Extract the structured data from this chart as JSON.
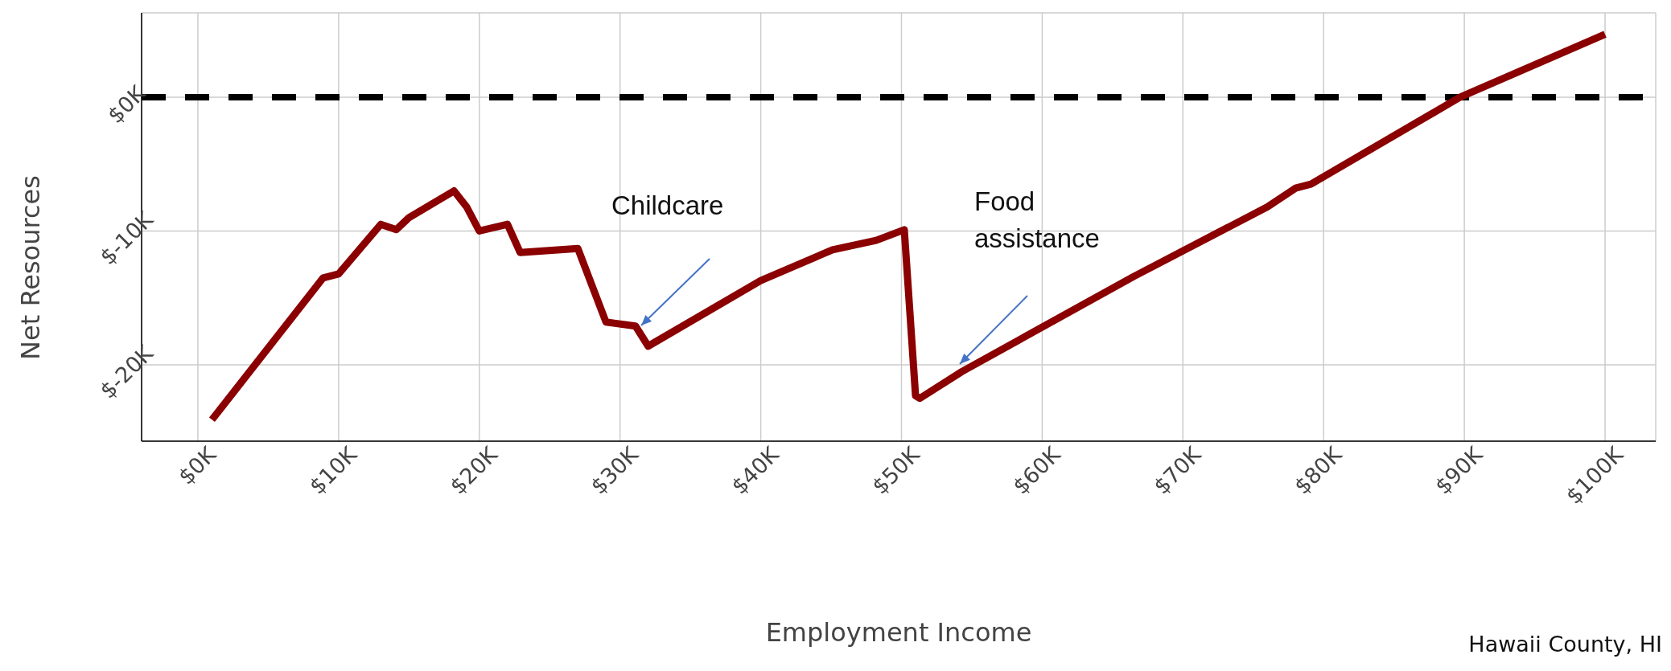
{
  "chart_data": {
    "type": "line",
    "xlabel": "Employment Income",
    "ylabel": "Net Resources",
    "annotations": [
      "Childcare",
      "Food assistance",
      "Hawaii County, HI"
    ],
    "series": [
      {
        "color": "#8b0000",
        "x": [
          1,
          8.9,
          10,
          13,
          14.1,
          15,
          18.2,
          19.1,
          20,
          22,
          22.9,
          27,
          29,
          31.1,
          32,
          40,
          45.1,
          48.2,
          50.2,
          51,
          51.3,
          54.3,
          66.5,
          76,
          78,
          79.1,
          89.7,
          100
        ],
        "values": [
          -24.1,
          -13.5,
          -13.2,
          -9.5,
          -9.9,
          -9,
          -7,
          -8.2,
          -10,
          -9.5,
          -11.6,
          -11.3,
          -16.8,
          -17.1,
          -18.6,
          -13.7,
          -11.4,
          -10.7,
          -9.9,
          -22.3,
          -22.5,
          -20.5,
          -13.4,
          -8.2,
          -6.8,
          -6.5,
          0,
          4.7
        ]
      }
    ],
    "xlim": [
      -4,
      103.6
    ],
    "ylim": [
      -25.7,
      6.3
    ],
    "xticks": [
      {
        "value": 0,
        "label": "$0K"
      },
      {
        "value": 10,
        "label": "$10K"
      },
      {
        "value": 20,
        "label": "$20K"
      },
      {
        "value": 30,
        "label": "$30K"
      },
      {
        "value": 40,
        "label": "$40K"
      },
      {
        "value": 50,
        "label": "$50K"
      },
      {
        "value": 60,
        "label": "$60K"
      },
      {
        "value": 70,
        "label": "$70K"
      },
      {
        "value": 80,
        "label": "$80K"
      },
      {
        "value": 90,
        "label": "$90K"
      },
      {
        "value": 100,
        "label": "$100K"
      }
    ],
    "yticks": [
      {
        "value": -20,
        "label": "$-20K"
      },
      {
        "value": -10,
        "label": "$-10K"
      },
      {
        "value": 0,
        "label": "$0K"
      }
    ],
    "ref_lines": [
      {
        "axis": "y",
        "value": 0,
        "color": "#000000",
        "line_style": "dashed"
      }
    ],
    "grid": true,
    "legend": false,
    "marker": "none",
    "line_style": "solid"
  }
}
